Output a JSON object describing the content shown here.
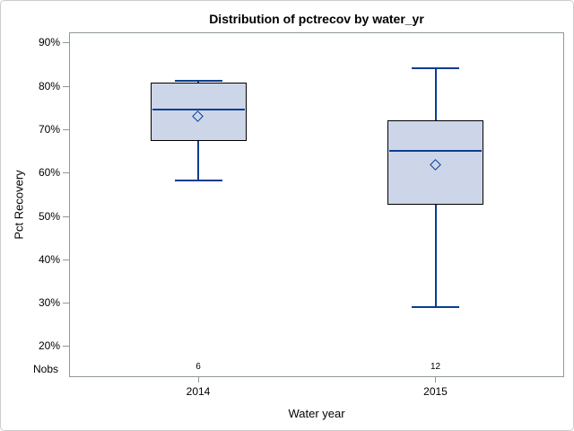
{
  "chart_data": {
    "type": "boxplot",
    "title": "Distribution of pctrecov by water_yr",
    "xlabel": "Water year",
    "ylabel": "Pct Recovery",
    "nobs_label": "Nobs",
    "categories": [
      "2014",
      "2015"
    ],
    "yticks": [
      90,
      80,
      70,
      60,
      50,
      40,
      30,
      20
    ],
    "ytick_labels": [
      "90%",
      "80%",
      "70%",
      "60%",
      "50%",
      "40%",
      "30%",
      "20%"
    ],
    "ylim": [
      20,
      90
    ],
    "grid": false,
    "legend": false,
    "series": [
      {
        "category": "2014",
        "whisker_low": 58.2,
        "q1": 67.4,
        "median": 74.5,
        "mean": 72.8,
        "q3": 80.7,
        "whisker_high": 81.2,
        "nobs": "6"
      },
      {
        "category": "2015",
        "whisker_low": 29.0,
        "q1": 52.7,
        "median": 65.0,
        "mean": 61.7,
        "q3": 72.1,
        "whisker_high": 84.1,
        "nobs": "12"
      }
    ],
    "colors": {
      "box_fill": "#ccd6e8",
      "box_border": "#000000",
      "line": "#0b3d91",
      "axis": "#8f9899",
      "text": "#000000",
      "figure_border": "#c9cccd"
    }
  }
}
